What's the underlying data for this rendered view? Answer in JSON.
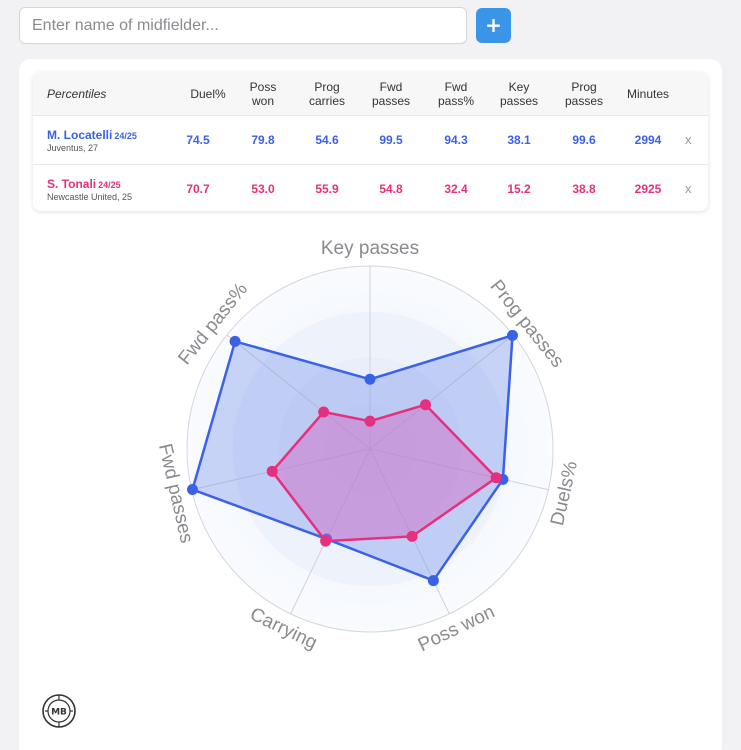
{
  "search": {
    "placeholder": "Enter name of midfielder...",
    "add_label": "+"
  },
  "table": {
    "headers": [
      [
        "Percentiles"
      ],
      [
        "Duel%"
      ],
      [
        "Poss",
        "won"
      ],
      [
        "Prog",
        "carries"
      ],
      [
        "Fwd",
        "passes"
      ],
      [
        "Fwd",
        "pass%"
      ],
      [
        "Key",
        "passes"
      ],
      [
        "Prog",
        "passes"
      ],
      [
        "Minutes"
      ]
    ],
    "rows": [
      {
        "name": "M. Locatelli",
        "season": "24/25",
        "team": "Juventus, 27",
        "values": [
          "74.5",
          "79.8",
          "54.6",
          "99.5",
          "94.3",
          "38.1",
          "99.6",
          "2994"
        ],
        "remove": "x"
      },
      {
        "name": "S. Tonali",
        "season": "24/25",
        "team": "Newcastle United, 25",
        "values": [
          "70.7",
          "53.0",
          "55.9",
          "54.8",
          "32.4",
          "15.2",
          "38.8",
          "2925"
        ],
        "remove": "x"
      }
    ]
  },
  "chart_data": {
    "type": "radar",
    "axes": [
      "Key passes",
      "Prog passes",
      "Duels%",
      "Poss won",
      "Carrying",
      "Fwd passes",
      "Fwd pass%"
    ],
    "range": [
      0,
      100
    ],
    "series": [
      {
        "name": "M. Locatelli",
        "color": "#3b62e6",
        "values": [
          38.1,
          99.6,
          74.5,
          79.8,
          54.6,
          99.5,
          94.3
        ]
      },
      {
        "name": "S. Tonali",
        "color": "#e6307d",
        "values": [
          15.2,
          38.8,
          70.7,
          53.0,
          55.9,
          54.8,
          32.4
        ]
      }
    ]
  },
  "logo": {
    "text": "MB"
  }
}
